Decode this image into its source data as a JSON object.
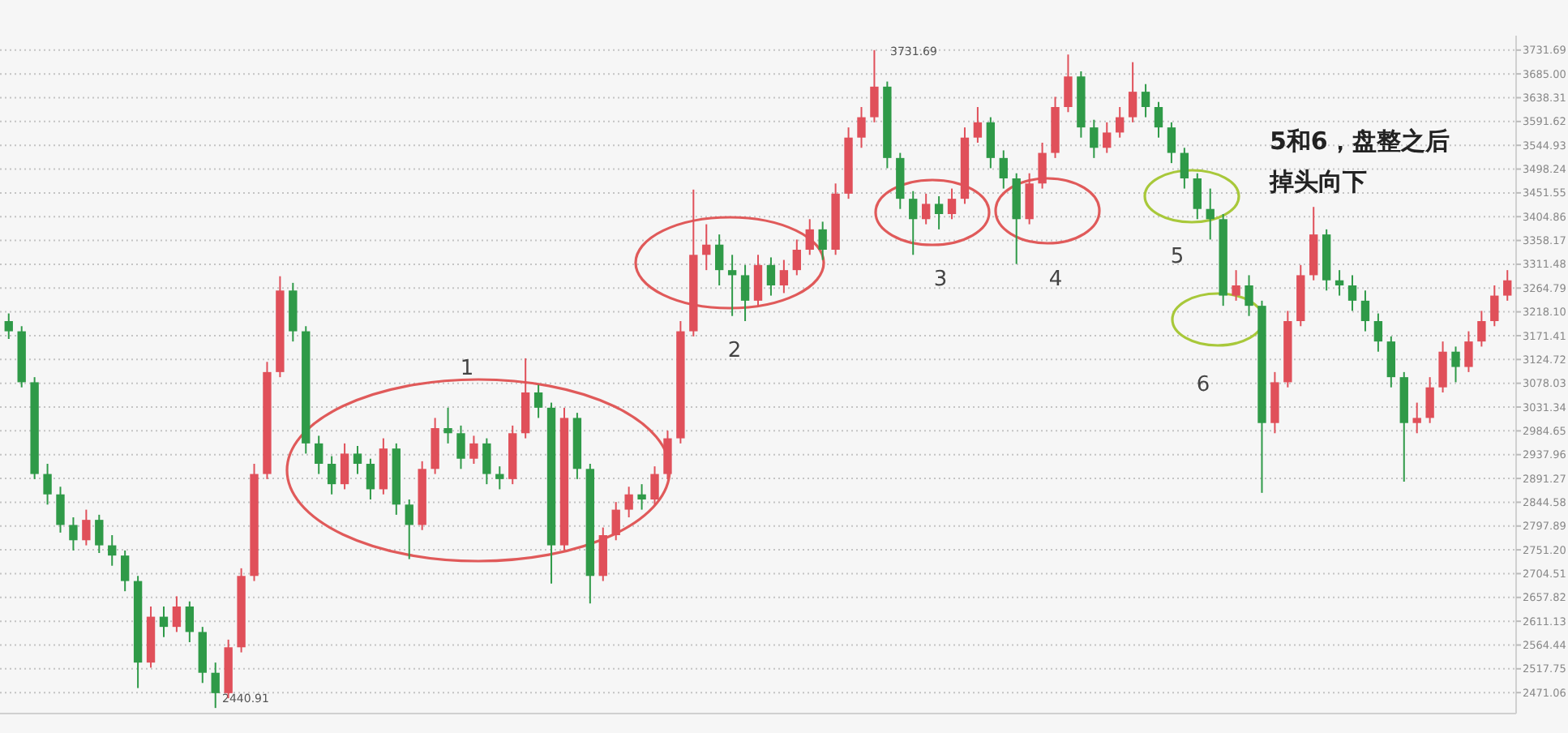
{
  "chart_data": {
    "type": "candlestick",
    "categories": [
      null,
      null,
      null,
      null,
      null,
      null,
      null,
      null,
      null,
      null,
      null,
      null,
      null,
      null,
      null,
      null,
      null,
      null,
      null,
      null,
      null,
      null,
      null,
      null,
      null,
      null,
      null,
      null,
      null,
      null,
      null,
      null,
      null,
      null,
      null,
      null,
      null,
      null,
      null,
      null,
      null,
      null,
      null,
      null,
      null,
      null,
      null,
      null,
      null,
      null,
      null,
      null,
      null,
      null,
      null,
      null,
      null,
      null,
      null,
      null,
      null,
      null,
      null,
      null,
      null,
      null,
      null,
      null,
      null,
      null,
      null,
      null,
      null,
      null,
      null,
      null,
      null,
      null,
      null,
      null,
      null,
      null,
      null,
      null,
      null,
      null,
      null,
      null,
      null,
      null,
      null,
      null,
      null,
      null,
      null,
      null,
      null,
      null,
      null,
      null,
      null,
      null,
      null,
      null,
      null,
      null,
      null,
      null,
      null,
      null,
      null,
      null,
      null,
      null,
      null,
      null,
      null
    ],
    "ohlc": [
      [
        3200,
        3215,
        3165,
        3180
      ],
      [
        3180,
        3190,
        3070,
        3080
      ],
      [
        3080,
        3090,
        2890,
        2900
      ],
      [
        2900,
        2920,
        2840,
        2860
      ],
      [
        2860,
        2875,
        2785,
        2800
      ],
      [
        2800,
        2815,
        2750,
        2770
      ],
      [
        2770,
        2830,
        2760,
        2810
      ],
      [
        2810,
        2820,
        2745,
        2760
      ],
      [
        2760,
        2780,
        2720,
        2740
      ],
      [
        2740,
        2750,
        2670,
        2690
      ],
      [
        2690,
        2700,
        2480,
        2530
      ],
      [
        2530,
        2640,
        2520,
        2620
      ],
      [
        2620,
        2640,
        2580,
        2600
      ],
      [
        2600,
        2660,
        2590,
        2640
      ],
      [
        2640,
        2650,
        2570,
        2590
      ],
      [
        2590,
        2600,
        2490,
        2510
      ],
      [
        2510,
        2530,
        2440.91,
        2470
      ],
      [
        2470,
        2575,
        2460,
        2560
      ],
      [
        2560,
        2715,
        2550,
        2700
      ],
      [
        2700,
        2920,
        2690,
        2900
      ],
      [
        2900,
        3120,
        2890,
        3100
      ],
      [
        3100,
        3288,
        3090,
        3260
      ],
      [
        3260,
        3275,
        3160,
        3180
      ],
      [
        3180,
        3190,
        2940,
        2960
      ],
      [
        2960,
        2975,
        2900,
        2920
      ],
      [
        2920,
        2935,
        2860,
        2880
      ],
      [
        2880,
        2960,
        2870,
        2940
      ],
      [
        2940,
        2955,
        2900,
        2920
      ],
      [
        2920,
        2930,
        2850,
        2870
      ],
      [
        2870,
        2970,
        2860,
        2950
      ],
      [
        2950,
        2960,
        2820,
        2840
      ],
      [
        2840,
        2850,
        2733,
        2800
      ],
      [
        2800,
        2925,
        2790,
        2910
      ],
      [
        2910,
        3010,
        2900,
        2990
      ],
      [
        2990,
        3030,
        2960,
        2980
      ],
      [
        2980,
        2995,
        2910,
        2930
      ],
      [
        2930,
        2975,
        2920,
        2960
      ],
      [
        2960,
        2970,
        2880,
        2900
      ],
      [
        2900,
        2915,
        2870,
        2890
      ],
      [
        2890,
        2995,
        2880,
        2980
      ],
      [
        2980,
        3127,
        2970,
        3060
      ],
      [
        3060,
        3075,
        3010,
        3030
      ],
      [
        3030,
        3040,
        2685,
        2760
      ],
      [
        2760,
        3030,
        2750,
        3010
      ],
      [
        3010,
        3020,
        2890,
        2910
      ],
      [
        2910,
        2920,
        2646,
        2700
      ],
      [
        2700,
        2795,
        2690,
        2780
      ],
      [
        2780,
        2845,
        2770,
        2830
      ],
      [
        2830,
        2875,
        2815,
        2860
      ],
      [
        2860,
        2880,
        2830,
        2850
      ],
      [
        2850,
        2915,
        2840,
        2900
      ],
      [
        2900,
        2985,
        2890,
        2970
      ],
      [
        2970,
        3200,
        2960,
        3180
      ],
      [
        3180,
        3458,
        3170,
        3330
      ],
      [
        3330,
        3390,
        3300,
        3350
      ],
      [
        3350,
        3370,
        3270,
        3300
      ],
      [
        3300,
        3330,
        3210,
        3290
      ],
      [
        3290,
        3310,
        3200,
        3240
      ],
      [
        3240,
        3330,
        3230,
        3310
      ],
      [
        3310,
        3325,
        3250,
        3270
      ],
      [
        3270,
        3320,
        3255,
        3300
      ],
      [
        3300,
        3360,
        3290,
        3340
      ],
      [
        3340,
        3400,
        3330,
        3380
      ],
      [
        3380,
        3395,
        3320,
        3340
      ],
      [
        3340,
        3470,
        3330,
        3450
      ],
      [
        3450,
        3580,
        3440,
        3560
      ],
      [
        3560,
        3620,
        3540,
        3600
      ],
      [
        3600,
        3731.69,
        3590,
        3660
      ],
      [
        3660,
        3670,
        3500,
        3520
      ],
      [
        3520,
        3530,
        3420,
        3440
      ],
      [
        3440,
        3455,
        3330,
        3400
      ],
      [
        3400,
        3450,
        3390,
        3430
      ],
      [
        3430,
        3445,
        3380,
        3410
      ],
      [
        3410,
        3460,
        3400,
        3440
      ],
      [
        3440,
        3580,
        3430,
        3560
      ],
      [
        3560,
        3620,
        3550,
        3590
      ],
      [
        3590,
        3600,
        3500,
        3520
      ],
      [
        3520,
        3535,
        3460,
        3480
      ],
      [
        3480,
        3490,
        3312,
        3400
      ],
      [
        3400,
        3490,
        3390,
        3470
      ],
      [
        3470,
        3550,
        3460,
        3530
      ],
      [
        3530,
        3640,
        3520,
        3620
      ],
      [
        3620,
        3723,
        3610,
        3680
      ],
      [
        3680,
        3690,
        3560,
        3580
      ],
      [
        3580,
        3595,
        3520,
        3540
      ],
      [
        3540,
        3590,
        3530,
        3570
      ],
      [
        3570,
        3620,
        3560,
        3600
      ],
      [
        3600,
        3708,
        3590,
        3650
      ],
      [
        3650,
        3665,
        3600,
        3620
      ],
      [
        3620,
        3630,
        3560,
        3580
      ],
      [
        3580,
        3590,
        3510,
        3530
      ],
      [
        3530,
        3540,
        3460,
        3480
      ],
      [
        3480,
        3490,
        3400,
        3420
      ],
      [
        3420,
        3460,
        3360,
        3400
      ],
      [
        3400,
        3410,
        3230,
        3250
      ],
      [
        3250,
        3300,
        3240,
        3270
      ],
      [
        3270,
        3290,
        3210,
        3230
      ],
      [
        3230,
        3240,
        2863,
        3000
      ],
      [
        3000,
        3100,
        2980,
        3080
      ],
      [
        3080,
        3220,
        3070,
        3200
      ],
      [
        3200,
        3310,
        3190,
        3290
      ],
      [
        3290,
        3424,
        3280,
        3370
      ],
      [
        3370,
        3380,
        3260,
        3280
      ],
      [
        3280,
        3300,
        3250,
        3270
      ],
      [
        3270,
        3290,
        3220,
        3240
      ],
      [
        3240,
        3260,
        3180,
        3200
      ],
      [
        3200,
        3215,
        3140,
        3160
      ],
      [
        3160,
        3170,
        3070,
        3090
      ],
      [
        3090,
        3100,
        2885,
        3000
      ],
      [
        3000,
        3040,
        2980,
        3010
      ],
      [
        3010,
        3090,
        3000,
        3070
      ],
      [
        3070,
        3160,
        3060,
        3140
      ],
      [
        3140,
        3150,
        3080,
        3110
      ],
      [
        3110,
        3180,
        3100,
        3160
      ],
      [
        3160,
        3220,
        3150,
        3200
      ],
      [
        3200,
        3270,
        3190,
        3250
      ],
      [
        3250,
        3300,
        3240,
        3280
      ]
    ],
    "ylim": [
      2430,
      3760
    ],
    "yticks": [
      {
        "value": 3731.69,
        "label": "3731.69"
      },
      {
        "value": 3685,
        "label": "3685.00"
      },
      {
        "value": 3638.31,
        "label": "3638.31"
      },
      {
        "value": 3591.62,
        "label": "3591.62"
      },
      {
        "value": 3544.93,
        "label": "3544.93"
      },
      {
        "value": 3498.24,
        "label": "3498.24"
      },
      {
        "value": 3451.55,
        "label": "3451.55"
      },
      {
        "value": 3404.86,
        "label": "3404.86"
      },
      {
        "value": 3358.17,
        "label": "3358.17"
      },
      {
        "value": 3311.48,
        "label": "3311.48"
      },
      {
        "value": 3264.79,
        "label": "3264.79"
      },
      {
        "value": 3218.1,
        "label": "3218.10"
      },
      {
        "value": 3171.41,
        "label": "3171.41"
      },
      {
        "value": 3124.72,
        "label": "3124.72"
      },
      {
        "value": 3078.03,
        "label": "3078.03"
      },
      {
        "value": 3031.34,
        "label": "3031.34"
      },
      {
        "value": 2984.65,
        "label": "2984.65"
      },
      {
        "value": 2937.96,
        "label": "2937.96"
      },
      {
        "value": 2891.27,
        "label": "2891.27"
      },
      {
        "value": 2844.58,
        "label": "2844.58"
      },
      {
        "value": 2797.89,
        "label": "2797.89"
      },
      {
        "value": 2751.2,
        "label": "2751.20"
      },
      {
        "value": 2704.51,
        "label": "2704.51"
      },
      {
        "value": 2657.82,
        "label": "2657.82"
      },
      {
        "value": 2611.13,
        "label": "2611.13"
      },
      {
        "value": 2564.44,
        "label": "2564.44"
      },
      {
        "value": 2517.75,
        "label": "2517.75"
      },
      {
        "value": 2471.06,
        "label": "2471.06"
      }
    ],
    "grid": "y",
    "tick_labels": "y",
    "annotations": [
      "1",
      "2",
      "3",
      "4",
      "5",
      "6",
      "5和6，盘整之后",
      "掉头向下",
      "3731.69",
      "2440.91"
    ]
  }
}
